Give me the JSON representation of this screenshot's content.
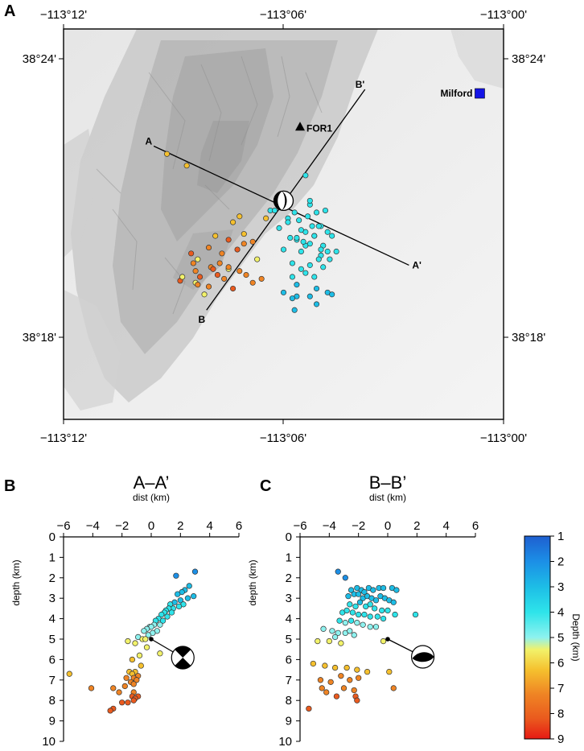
{
  "panel_labels": {
    "a": "A",
    "b": "B",
    "c": "C"
  },
  "map": {
    "lon_ticks": [
      "−113°12'",
      "−113°06'",
      "−113°00'"
    ],
    "lat_ticks": [
      "38°24'",
      "38°18'"
    ],
    "milford_label": "Milford",
    "station_label": "FOR1",
    "profile_labels": {
      "a": "A",
      "a_prime": "A'",
      "b": "B",
      "b_prime": "B'"
    }
  },
  "chart_data": [
    {
      "type": "scatter",
      "title": "A–A’",
      "xlabel": "dist (km)",
      "ylabel": "depth (km)",
      "xlim": [
        -6,
        6
      ],
      "ylim": [
        10,
        0
      ],
      "xticks": [
        -6,
        -4,
        -2,
        0,
        2,
        4,
        6
      ],
      "yticks": [
        0,
        1,
        2,
        3,
        4,
        5,
        6,
        7,
        8,
        9,
        10
      ],
      "color_by": "depth",
      "mainshock": {
        "x": 0,
        "y": 5.0
      },
      "x": [
        3.0,
        1.7,
        2.6,
        2.3,
        2.1,
        1.8,
        2.9,
        2.5,
        2.0,
        1.6,
        1.3,
        2.2,
        1.9,
        1.5,
        1.2,
        1.0,
        1.4,
        0.9,
        0.7,
        1.1,
        0.5,
        0.3,
        0.8,
        0.2,
        -0.1,
        0.6,
        0.0,
        -0.3,
        0.4,
        -0.5,
        0.1,
        -0.2,
        -0.9,
        -0.6,
        -0.4,
        -1.6,
        -1.1,
        -0.3,
        0.6,
        -0.8,
        -1.3,
        -0.7,
        -1.5,
        -1.1,
        -1.3,
        -0.9,
        -1.2,
        -1.7,
        -1.0,
        -1.4,
        -1.2,
        -1.8,
        -2.6,
        -2.2,
        -1.2,
        -0.9,
        -1.3,
        -1.1,
        -1.2,
        -1.6,
        -2.0,
        -2.6,
        -2.8,
        -4.1,
        -5.6
      ],
      "y": [
        1.7,
        1.9,
        2.4,
        2.6,
        2.7,
        2.8,
        2.9,
        3.0,
        3.1,
        3.2,
        3.3,
        3.3,
        3.4,
        3.5,
        3.5,
        3.6,
        3.7,
        3.7,
        3.8,
        3.9,
        4.0,
        4.1,
        4.1,
        4.3,
        4.4,
        4.3,
        4.4,
        4.5,
        4.6,
        4.6,
        4.7,
        4.8,
        4.9,
        5.0,
        5.0,
        5.1,
        5.2,
        5.4,
        5.7,
        5.8,
        6.0,
        6.3,
        6.6,
        6.6,
        6.7,
        6.8,
        6.9,
        6.9,
        7.0,
        7.1,
        7.2,
        7.3,
        7.4,
        7.6,
        7.6,
        7.8,
        7.8,
        7.9,
        8.0,
        8.1,
        8.1,
        8.4,
        8.5,
        7.4,
        6.7
      ]
    },
    {
      "type": "scatter",
      "title": "B–B’",
      "xlabel": "dist (km)",
      "ylabel": "depth (km)",
      "xlim": [
        -6,
        6
      ],
      "ylim": [
        10,
        0
      ],
      "xticks": [
        -6,
        -4,
        -2,
        0,
        2,
        4,
        6
      ],
      "yticks": [
        0,
        1,
        2,
        3,
        4,
        5,
        6,
        7,
        8,
        9,
        10
      ],
      "color_by": "depth",
      "mainshock": {
        "x": 0,
        "y": 5.0
      },
      "x": [
        -3.4,
        -2.9,
        -2.5,
        -2.1,
        -1.8,
        -1.6,
        -1.3,
        -1.0,
        -0.6,
        -0.3,
        0.3,
        0.6,
        -2.7,
        -2.3,
        -2.0,
        -1.7,
        -1.4,
        -1.1,
        -0.8,
        -0.5,
        -0.2,
        0.1,
        0.4,
        -2.6,
        -2.2,
        -1.9,
        -1.5,
        -1.2,
        -0.9,
        -0.4,
        0.0,
        0.5,
        1.9,
        -3.1,
        -2.8,
        -2.4,
        -2.0,
        -1.6,
        -1.2,
        -0.7,
        -0.3,
        -3.3,
        -2.9,
        -2.5,
        -2.1,
        -1.7,
        -1.2,
        -0.8,
        -4.4,
        -3.8,
        -3.4,
        -2.9,
        -2.6,
        -2.3,
        -3.6,
        -4.0,
        -0.3,
        -4.8,
        -3.2,
        -5.1,
        -4.3,
        -3.6,
        -2.8,
        -2.1,
        -1.4,
        0.1,
        -4.6,
        -3.9,
        -3.2,
        -2.6,
        -2.0,
        -4.5,
        -3.0,
        -2.3,
        0.4,
        -4.2,
        -3.5,
        -2.2,
        -2.1,
        -5.4
      ],
      "y": [
        1.7,
        2.0,
        2.6,
        2.5,
        2.6,
        2.7,
        2.5,
        2.6,
        2.5,
        2.5,
        2.5,
        2.6,
        2.9,
        2.8,
        2.8,
        3.0,
        2.9,
        3.0,
        3.1,
        2.9,
        3.0,
        3.1,
        3.2,
        3.3,
        3.4,
        3.2,
        3.4,
        3.3,
        3.5,
        3.6,
        3.6,
        3.8,
        3.8,
        3.7,
        3.6,
        3.7,
        3.8,
        3.8,
        3.9,
        3.9,
        4.0,
        4.1,
        4.2,
        4.1,
        4.2,
        4.3,
        4.4,
        4.4,
        4.5,
        4.6,
        4.7,
        4.7,
        4.6,
        4.8,
        4.9,
        5.1,
        5.1,
        5.1,
        5.2,
        6.2,
        6.3,
        6.4,
        6.4,
        6.5,
        6.6,
        6.6,
        7.0,
        7.1,
        6.8,
        7.0,
        6.9,
        7.4,
        7.4,
        7.5,
        7.4,
        7.6,
        7.8,
        7.8,
        8.0,
        8.4
      ]
    },
    {
      "type": "scatter",
      "xlabel": "",
      "ylabel": "",
      "lon_range": [
        -113.2,
        -113.0
      ],
      "lat_range": [
        38.233,
        38.433
      ],
      "mainshock": {
        "lon": -113.1,
        "lat": 38.345
      },
      "milford": {
        "lon": -113.0108,
        "lat": 38.4
      },
      "station": {
        "lon": -113.0925,
        "lat": 38.383
      },
      "profile_a": {
        "start": [
          -113.159,
          38.373
        ],
        "end": [
          -113.043,
          38.312
        ]
      },
      "profile_b": {
        "start": [
          -113.135,
          38.289
        ],
        "end": [
          -113.063,
          38.402
        ]
      },
      "lon": [
        -113.153,
        -113.144,
        -113.12,
        -113.123,
        -113.118,
        -113.131,
        -113.125,
        -113.118,
        -113.134,
        -113.142,
        -113.139,
        -113.128,
        -113.121,
        -113.114,
        -113.129,
        -113.125,
        -113.133,
        -113.14,
        -113.13,
        -113.12,
        -113.112,
        -113.138,
        -113.127,
        -113.117,
        -113.147,
        -113.14,
        -113.134,
        -113.123,
        -113.114,
        -113.11,
        -113.146,
        -113.139,
        -113.125,
        -113.132,
        -113.141,
        -113.136,
        -113.106,
        -113.108,
        -113.097,
        -113.095,
        -113.093,
        -113.09,
        -113.088,
        -113.085,
        -113.083,
        -113.081,
        -113.087,
        -113.092,
        -113.097,
        -113.102,
        -113.098,
        -113.089,
        -113.084,
        -113.08,
        -113.094,
        -113.086,
        -113.082,
        -113.078,
        -113.076,
        -113.09,
        -113.083,
        -113.079,
        -113.096,
        -113.088,
        -113.082,
        -113.092,
        -113.086,
        -113.096,
        -113.09,
        -113.094,
        -113.085,
        -113.08,
        -113.1,
        -113.094,
        -113.088,
        -113.085,
        -113.078,
        -113.083,
        -113.084,
        -113.094,
        -113.088,
        -113.092,
        -113.098,
        -113.088,
        -113.102,
        -113.08,
        -113.086,
        -113.091,
        -113.1,
        -113.104,
        -113.096,
        -113.095,
        -113.09
      ],
      "lat": [
        38.369,
        38.363,
        38.337,
        38.334,
        38.328,
        38.327,
        38.325,
        38.323,
        38.321,
        38.318,
        38.315,
        38.318,
        38.32,
        38.324,
        38.313,
        38.31,
        38.311,
        38.309,
        38.307,
        38.309,
        38.315,
        38.306,
        38.305,
        38.307,
        38.304,
        38.303,
        38.301,
        38.3,
        38.303,
        38.305,
        38.306,
        38.302,
        38.311,
        38.31,
        38.313,
        38.297,
        38.34,
        38.336,
        38.344,
        38.339,
        38.335,
        38.329,
        38.343,
        38.339,
        38.332,
        38.34,
        38.332,
        38.33,
        38.326,
        38.331,
        38.336,
        38.337,
        38.332,
        38.329,
        38.325,
        38.327,
        38.322,
        38.327,
        38.319,
        38.322,
        38.317,
        38.315,
        38.313,
        38.312,
        38.311,
        38.319,
        38.306,
        38.306,
        38.308,
        38.302,
        38.3,
        38.298,
        38.298,
        38.296,
        38.296,
        38.292,
        38.297,
        38.32,
        38.315,
        38.326,
        38.323,
        38.31,
        38.334,
        38.345,
        38.342,
        38.319,
        38.327,
        38.324,
        38.32,
        38.34,
        38.295,
        38.289,
        38.358
      ]
    }
  ],
  "colorbar": {
    "title": "Depth (km)",
    "ticks": [
      "1",
      "2",
      "3",
      "4",
      "5",
      "6",
      "7",
      "8",
      "9"
    ],
    "range": [
      1,
      9
    ],
    "colors": [
      "#1e5fd0",
      "#1c8fe6",
      "#1dbde6",
      "#2ee4ea",
      "#8ef2ef",
      "#f2f26a",
      "#f5c02e",
      "#ef8424",
      "#ea5a1e",
      "#e61a14"
    ]
  }
}
